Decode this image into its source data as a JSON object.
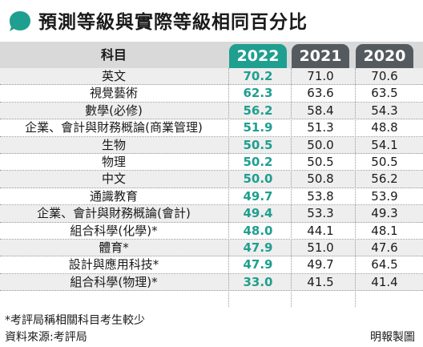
{
  "title": "預測等級與實際等級相同百分比",
  "colors": {
    "accent_2022": "#1f9f8f",
    "header_dark": "#555a5f",
    "header_bg": "#d9d9d9",
    "stripe": "#eeeeee"
  },
  "chart_data": {
    "type": "table",
    "columns": [
      "科目",
      "2022",
      "2021",
      "2020"
    ],
    "rows": [
      {
        "subject": "英文",
        "v2022": "70.2",
        "v2021": "71.0",
        "v2020": "70.6"
      },
      {
        "subject": "視覺藝術",
        "v2022": "62.3",
        "v2021": "63.6",
        "v2020": "63.5"
      },
      {
        "subject": "數學(必修)",
        "v2022": "56.2",
        "v2021": "58.4",
        "v2020": "54.3"
      },
      {
        "subject": "企業、會計與財務概論(商業管理)",
        "v2022": "51.9",
        "v2021": "51.3",
        "v2020": "48.8"
      },
      {
        "subject": "生物",
        "v2022": "50.5",
        "v2021": "50.0",
        "v2020": "54.1"
      },
      {
        "subject": "物理",
        "v2022": "50.2",
        "v2021": "50.5",
        "v2020": "50.5"
      },
      {
        "subject": "中文",
        "v2022": "50.0",
        "v2021": "50.8",
        "v2020": "56.2"
      },
      {
        "subject": "通識教育",
        "v2022": "49.7",
        "v2021": "53.8",
        "v2020": "53.9"
      },
      {
        "subject": "企業、會計與財務概論(會計)",
        "v2022": "49.4",
        "v2021": "53.3",
        "v2020": "49.3"
      },
      {
        "subject": "組合科學(化學)*",
        "v2022": "48.0",
        "v2021": "44.1",
        "v2020": "48.1"
      },
      {
        "subject": "體育*",
        "v2022": "47.9",
        "v2021": "51.0",
        "v2020": "47.6"
      },
      {
        "subject": "設計與應用科技*",
        "v2022": "47.9",
        "v2021": "49.7",
        "v2020": "64.5"
      },
      {
        "subject": "組合科學(物理)*",
        "v2022": "33.0",
        "v2021": "41.5",
        "v2020": "41.4"
      }
    ]
  },
  "footnote": "*考評局稱相關科目考生較少",
  "source": "資料來源:考評局",
  "credit": "明報製圖"
}
